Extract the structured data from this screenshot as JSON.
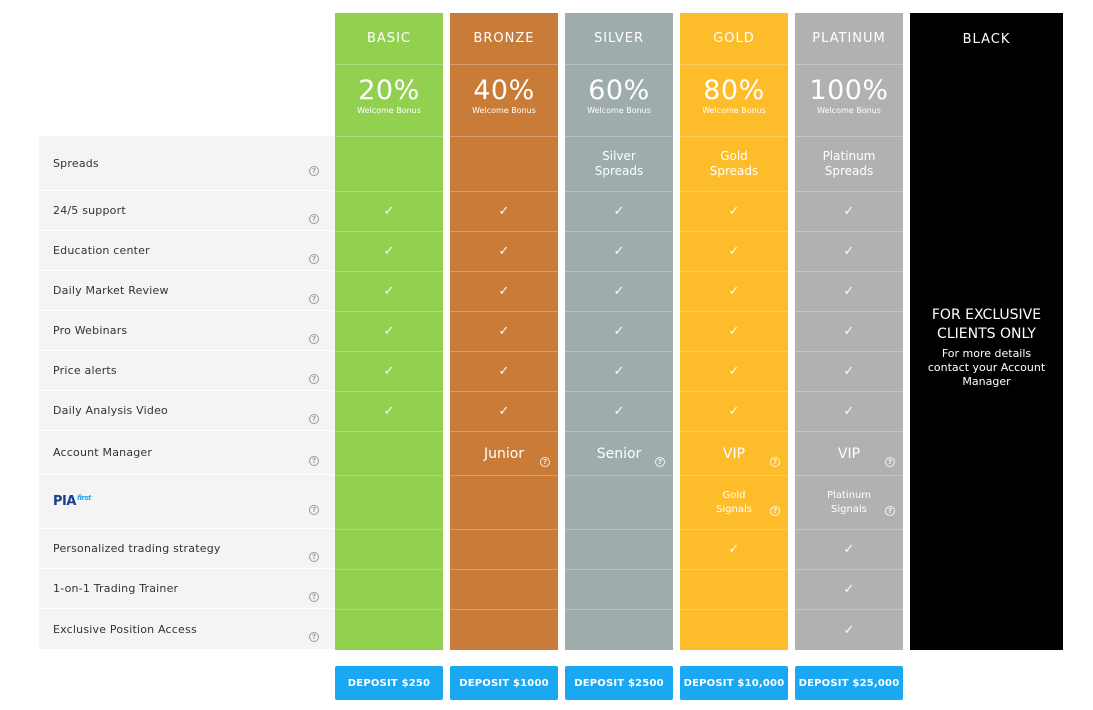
{
  "colors": {
    "basic": "#92d050",
    "bronze": "#c97c38",
    "silver": "#9eacab",
    "gold": "#fdbd2a",
    "platinum": "#b1b1b1",
    "black": "#000000",
    "deposit_button": "#1aa8f2",
    "features_bg": "#f4f4f4"
  },
  "icons": {
    "help": "question-circle-icon",
    "check": "checkmark-icon"
  },
  "features": [
    {
      "label": "Spreads"
    },
    {
      "label": "24/5 support"
    },
    {
      "label": "Education center"
    },
    {
      "label": "Daily Market Review"
    },
    {
      "label": "Pro Webinars"
    },
    {
      "label": "Price alerts"
    },
    {
      "label": "Daily Analysis Video"
    },
    {
      "label": "Account Manager"
    },
    {
      "label": "",
      "logo_text": "PIA",
      "logo_sub": "first"
    },
    {
      "label": "Personalized trading strategy"
    },
    {
      "label": "1-on-1 Trading Trainer"
    },
    {
      "label": "Exclusive Position Access"
    }
  ],
  "plans": [
    {
      "name": "BASIC",
      "bonus": "20%",
      "bonus_label": "Welcome Bonus",
      "spreads": "",
      "account_manager": "",
      "pia": "",
      "checks": [
        true,
        true,
        true,
        true,
        true,
        true,
        false,
        false,
        false
      ],
      "deposit": "DEPOSIT $250"
    },
    {
      "name": "BRONZE",
      "bonus": "40%",
      "bonus_label": "Welcome Bonus",
      "spreads": "",
      "account_manager": "Junior",
      "pia": "",
      "checks": [
        true,
        true,
        true,
        true,
        true,
        true,
        false,
        false,
        false
      ],
      "deposit": "DEPOSIT $1000"
    },
    {
      "name": "SILVER",
      "bonus": "60%",
      "bonus_label": "Welcome Bonus",
      "spreads": "Silver Spreads",
      "account_manager": "Senior",
      "pia": "",
      "checks": [
        true,
        true,
        true,
        true,
        true,
        true,
        false,
        false,
        false
      ],
      "deposit": "DEPOSIT $2500"
    },
    {
      "name": "GOLD",
      "bonus": "80%",
      "bonus_label": "Welcome Bonus",
      "spreads": "Gold Spreads",
      "account_manager": "VIP",
      "pia": "Gold Signals",
      "checks": [
        true,
        true,
        true,
        true,
        true,
        true,
        true,
        false,
        false
      ],
      "deposit": "DEPOSIT $10,000"
    },
    {
      "name": "PLATINUM",
      "bonus": "100%",
      "bonus_label": "Welcome Bonus",
      "spreads": "Platinum Spreads",
      "account_manager": "VIP",
      "pia": "Platinum Signals",
      "checks": [
        true,
        true,
        true,
        true,
        true,
        true,
        true,
        true,
        true
      ],
      "deposit": "DEPOSIT $25,000"
    }
  ],
  "black": {
    "name": "BLACK",
    "title": "FOR EXCLUSIVE CLIENTS ONLY",
    "subtitle": "For more details contact your Account Manager"
  }
}
